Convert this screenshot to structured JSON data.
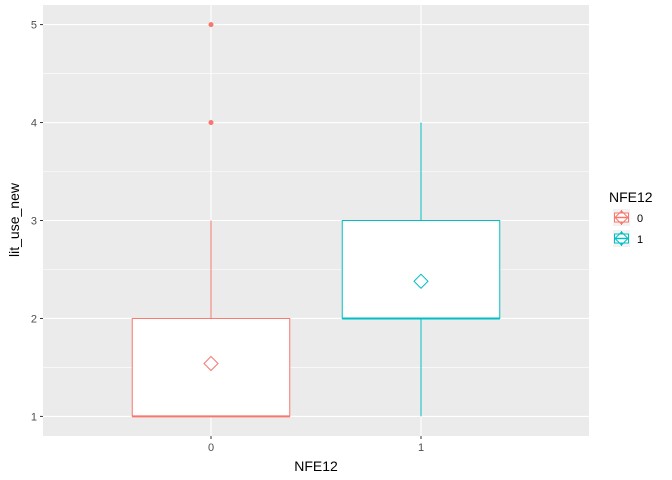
{
  "chart_data": {
    "type": "boxplot",
    "categories": [
      "0",
      "1"
    ],
    "xlabel": "NFE12",
    "ylabel": "lit_use_new",
    "ylim": [
      0.8,
      5.2
    ],
    "yticks": [
      1,
      2,
      3,
      4,
      5
    ],
    "grid": true,
    "legend": {
      "title": "NFE12",
      "position": "right",
      "labels": [
        "0",
        "1"
      ]
    },
    "colors": {
      "0": "#F8766D",
      "1": "#00BFC4",
      "panel": "#EBEBEB",
      "grid": "#FFFFFF"
    },
    "boxes": [
      {
        "category": "0",
        "lower_whisker": 1,
        "q1": 1,
        "median": 1,
        "q3": 2,
        "upper_whisker": 3,
        "mean": 1.54,
        "outliers": [
          4,
          5
        ]
      },
      {
        "category": "1",
        "lower_whisker": 1,
        "q1": 2,
        "median": 2,
        "q3": 3,
        "upper_whisker": 4,
        "mean": 2.38,
        "outliers": []
      }
    ]
  }
}
